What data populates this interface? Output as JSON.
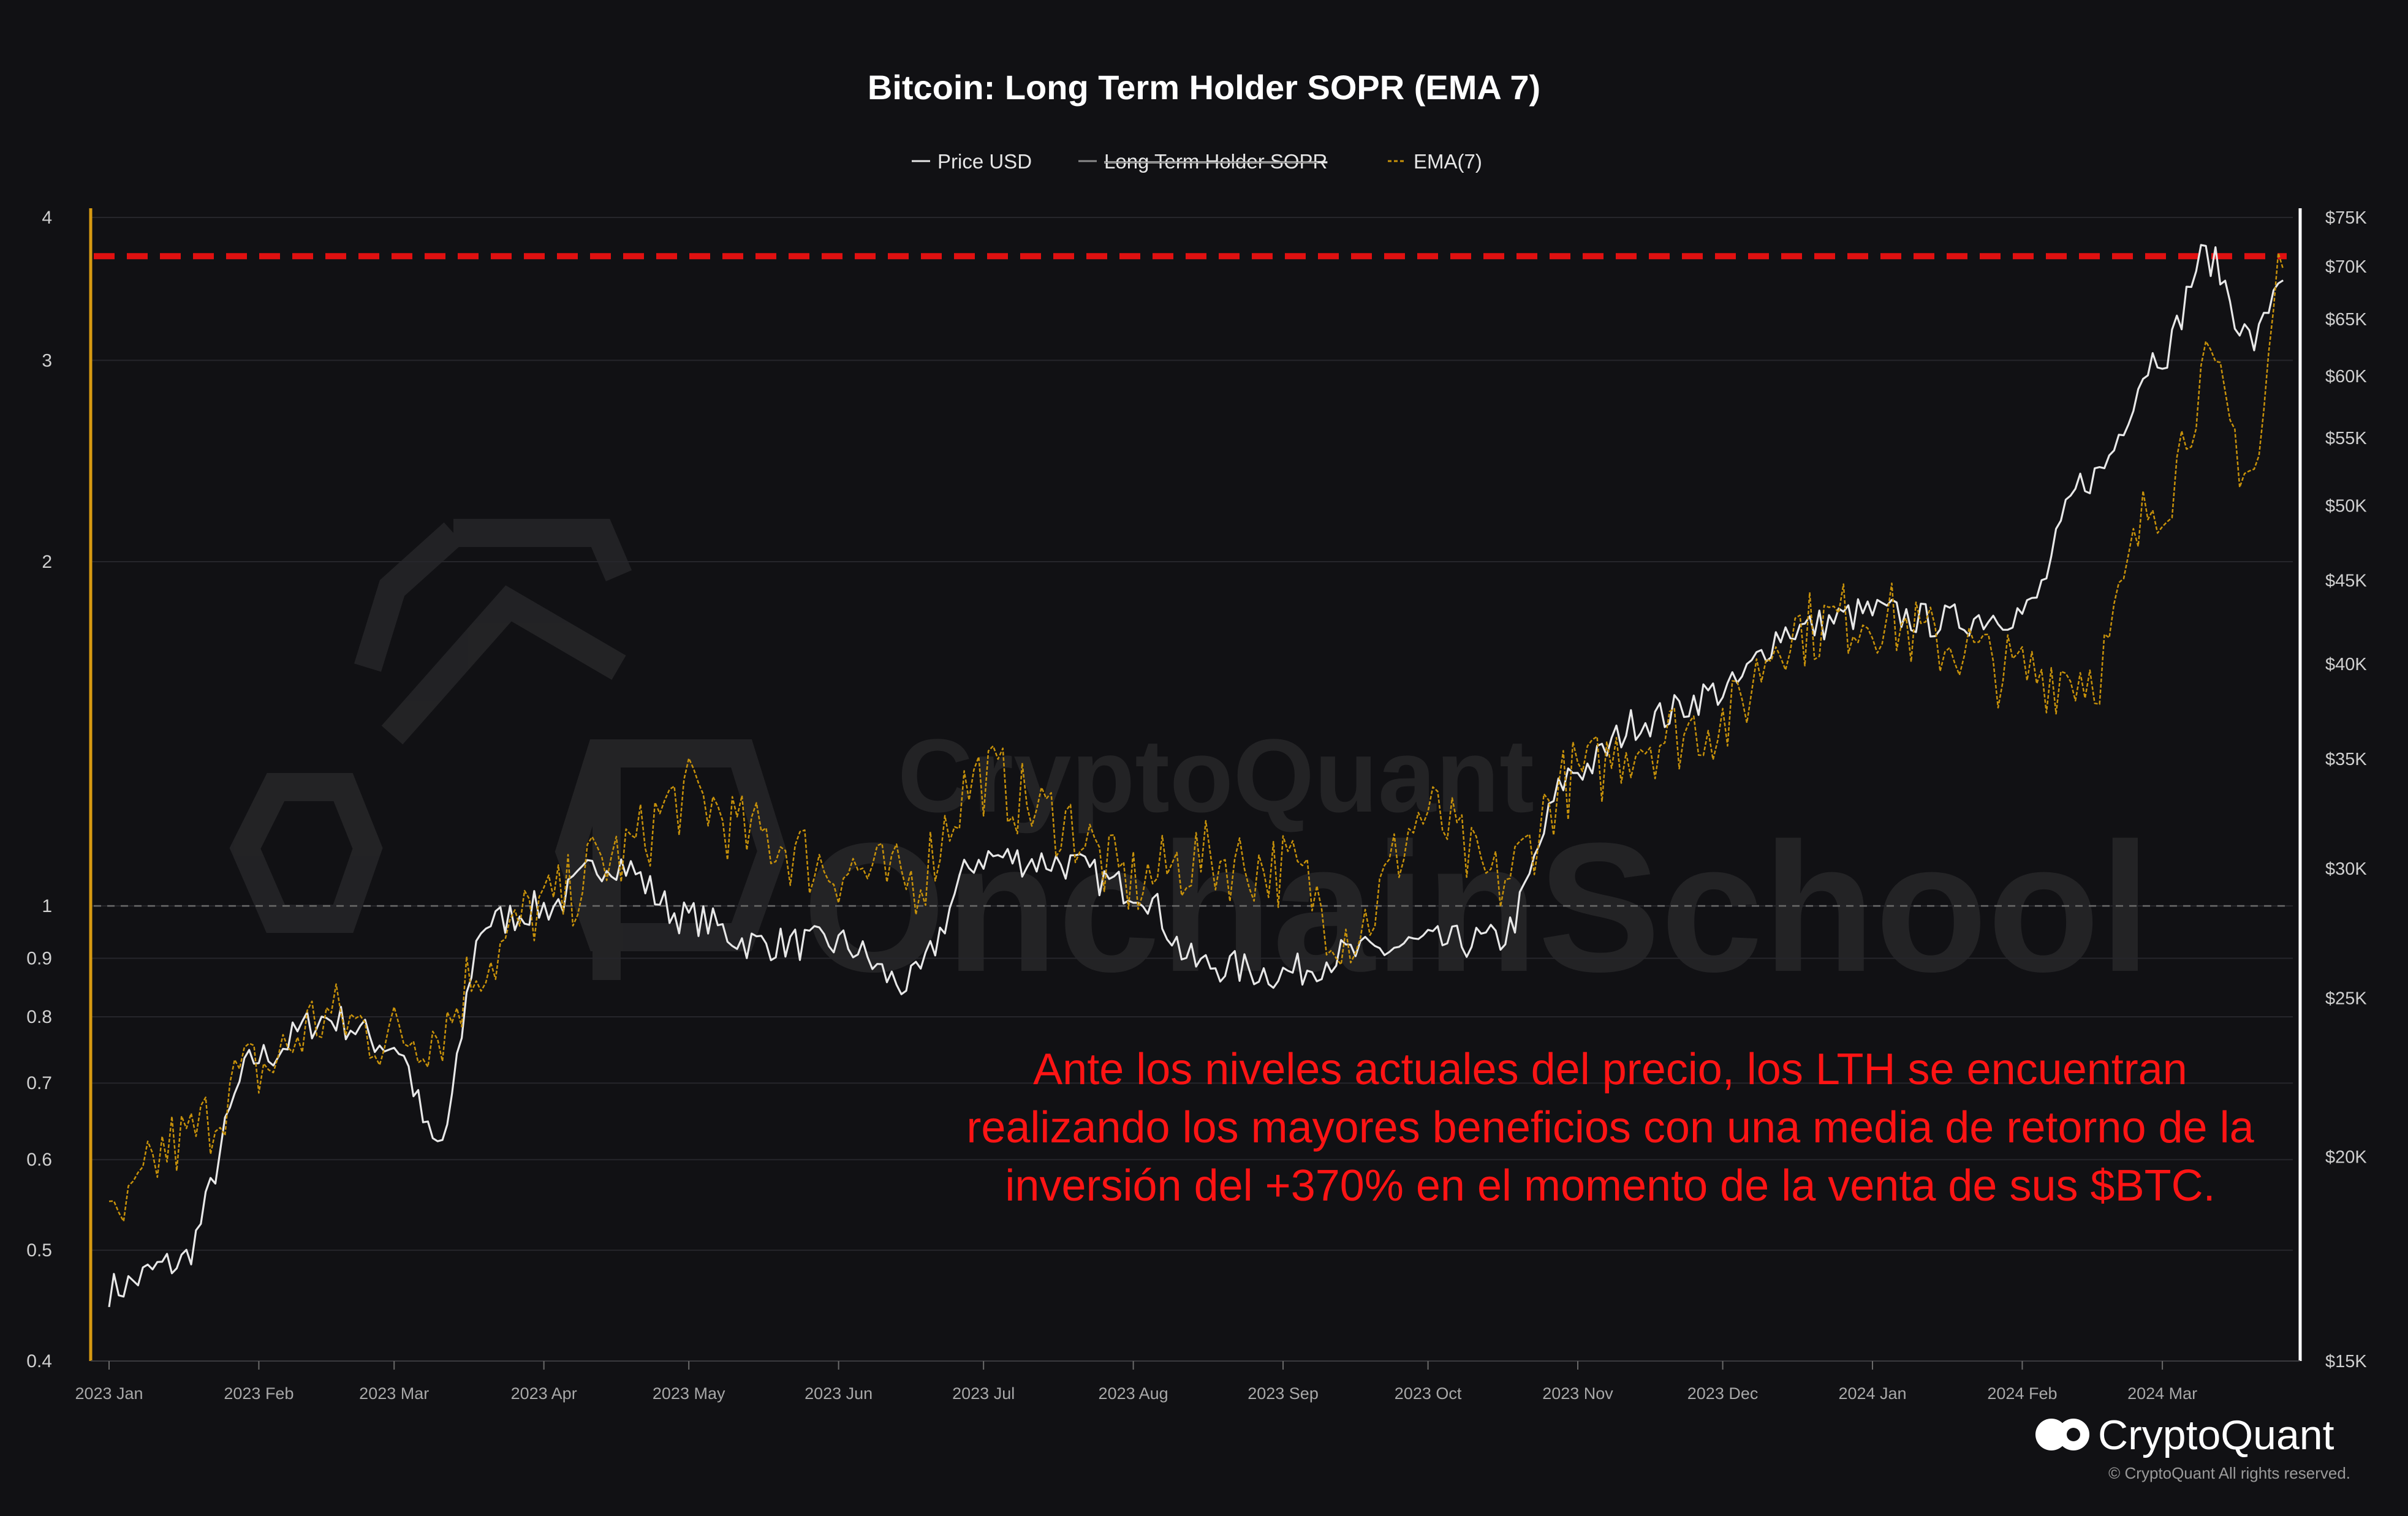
{
  "chart_data": {
    "type": "line",
    "title": "Bitcoin: Long Term Holder SOPR (EMA 7)",
    "legend": [
      {
        "name": "Price USD",
        "color": "#e8e8e8",
        "style": "solid",
        "hidden": false
      },
      {
        "name": "Long Term Holder SOPR",
        "color": "#8a8a8a",
        "style": "solid",
        "hidden": true
      },
      {
        "name": "EMA(7)",
        "color": "#c8920a",
        "style": "dashed",
        "hidden": false
      }
    ],
    "legend_position": "top-center",
    "x_ticks": [
      "2023 Jan",
      "2023 Feb",
      "2023 Mar",
      "2023 Apr",
      "2023 May",
      "2023 Jun",
      "2023 Jul",
      "2023 Aug",
      "2023 Sep",
      "2023 Oct",
      "2023 Nov",
      "2023 Dec",
      "2024 Jan",
      "2024 Feb",
      "2024 Mar"
    ],
    "y_left": {
      "scale": "log",
      "range": [
        0.4,
        4
      ],
      "ticks": [
        "0.4",
        "0.5",
        "0.6",
        "0.7",
        "0.8",
        "0.9",
        "1",
        "2",
        "3",
        "4"
      ],
      "color": "#d79a12"
    },
    "y_right": {
      "scale": "log",
      "range": [
        15000,
        75000
      ],
      "ticks": [
        "$15K",
        "$20K",
        "$25K",
        "$30K",
        "$35K",
        "$40K",
        "$45K",
        "$50K",
        "$55K",
        "$60K",
        "$65K",
        "$70K",
        "$75K"
      ]
    },
    "grid": true,
    "reference_lines": [
      {
        "axis": "left",
        "value": 1,
        "style": "dashed",
        "color": "#6a6a6a"
      },
      {
        "axis": "left",
        "value": 3.7,
        "style": "dashed",
        "color": "#e01010"
      }
    ],
    "x": [
      "2023-01-01",
      "2023-01-15",
      "2023-02-01",
      "2023-02-15",
      "2023-03-01",
      "2023-03-10",
      "2023-03-20",
      "2023-04-01",
      "2023-04-15",
      "2023-05-01",
      "2023-05-15",
      "2023-06-01",
      "2023-06-15",
      "2023-07-01",
      "2023-07-15",
      "2023-08-01",
      "2023-08-15",
      "2023-09-01",
      "2023-09-15",
      "2023-10-01",
      "2023-10-15",
      "2023-11-01",
      "2023-11-15",
      "2023-12-01",
      "2023-12-15",
      "2024-01-01",
      "2024-01-15",
      "2024-02-01",
      "2024-02-15",
      "2024-03-01",
      "2024-03-10",
      "2024-03-20",
      "2024-03-26"
    ],
    "series": [
      {
        "name": "Price USD",
        "axis": "right",
        "values": [
          16600,
          17200,
          23000,
          24300,
          23400,
          20300,
          27800,
          28400,
          30300,
          28000,
          27000,
          27000,
          25500,
          30500,
          30300,
          29200,
          26200,
          25900,
          26600,
          27000,
          27100,
          34500,
          37000,
          38500,
          42000,
          43000,
          42500,
          43000,
          52000,
          62000,
          71000,
          63000,
          69500
        ]
      },
      {
        "name": "EMA(7)",
        "axis": "left",
        "values": [
          0.52,
          0.62,
          0.72,
          0.8,
          0.77,
          0.78,
          0.9,
          1.0,
          1.1,
          1.25,
          1.15,
          1.08,
          1.05,
          1.3,
          1.2,
          1.05,
          1.1,
          1.08,
          0.95,
          1.2,
          1.05,
          1.3,
          1.4,
          1.45,
          1.75,
          1.8,
          1.7,
          1.6,
          1.6,
          2.3,
          2.9,
          2.4,
          3.7
        ]
      }
    ]
  },
  "annotation": {
    "lines": [
      "Ante los niveles actuales del precio, los LTH se encuentran",
      "realizando los mayores beneficios con una media de retorno de la",
      "inversión del +370% en el momento de la venta de sus $BTC."
    ],
    "color": "#ff1414"
  },
  "watermark": {
    "line1": "CryptoQuant",
    "line2": "OnchainSchool"
  },
  "brand": {
    "name": "CryptoQuant",
    "copyright": "© CryptoQuant All rights reserved."
  }
}
